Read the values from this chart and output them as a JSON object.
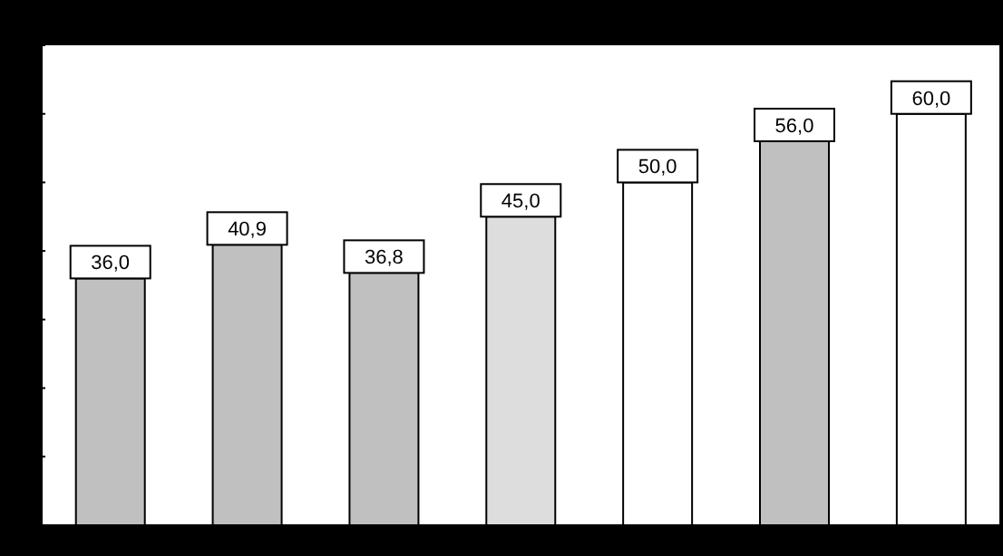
{
  "chart_data": {
    "type": "bar",
    "categories": [
      null,
      null,
      null,
      null,
      null,
      null,
      null
    ],
    "values": [
      36.0,
      40.9,
      36.8,
      45.0,
      50.0,
      56.0,
      60.0
    ],
    "colors": [
      "#c0c0c0",
      "#c0c0c0",
      "#c0c0c0",
      "#dddddd",
      "#ffffff",
      "#c0c0c0",
      "#ffffff"
    ],
    "value_labels": [
      "36,0",
      "40,9",
      "36,8",
      "45,0",
      "50,0",
      "56,0",
      "60,0"
    ],
    "ylim": [
      0,
      70
    ],
    "yticks": [
      {
        "value": 0,
        "label": null
      },
      {
        "value": 10,
        "label": null
      },
      {
        "value": 20,
        "label": null
      },
      {
        "value": 30,
        "label": null
      },
      {
        "value": 40,
        "label": null
      },
      {
        "value": 50,
        "label": null
      },
      {
        "value": 60,
        "label": null
      },
      {
        "value": 70,
        "label": null
      }
    ],
    "grid": false
  }
}
